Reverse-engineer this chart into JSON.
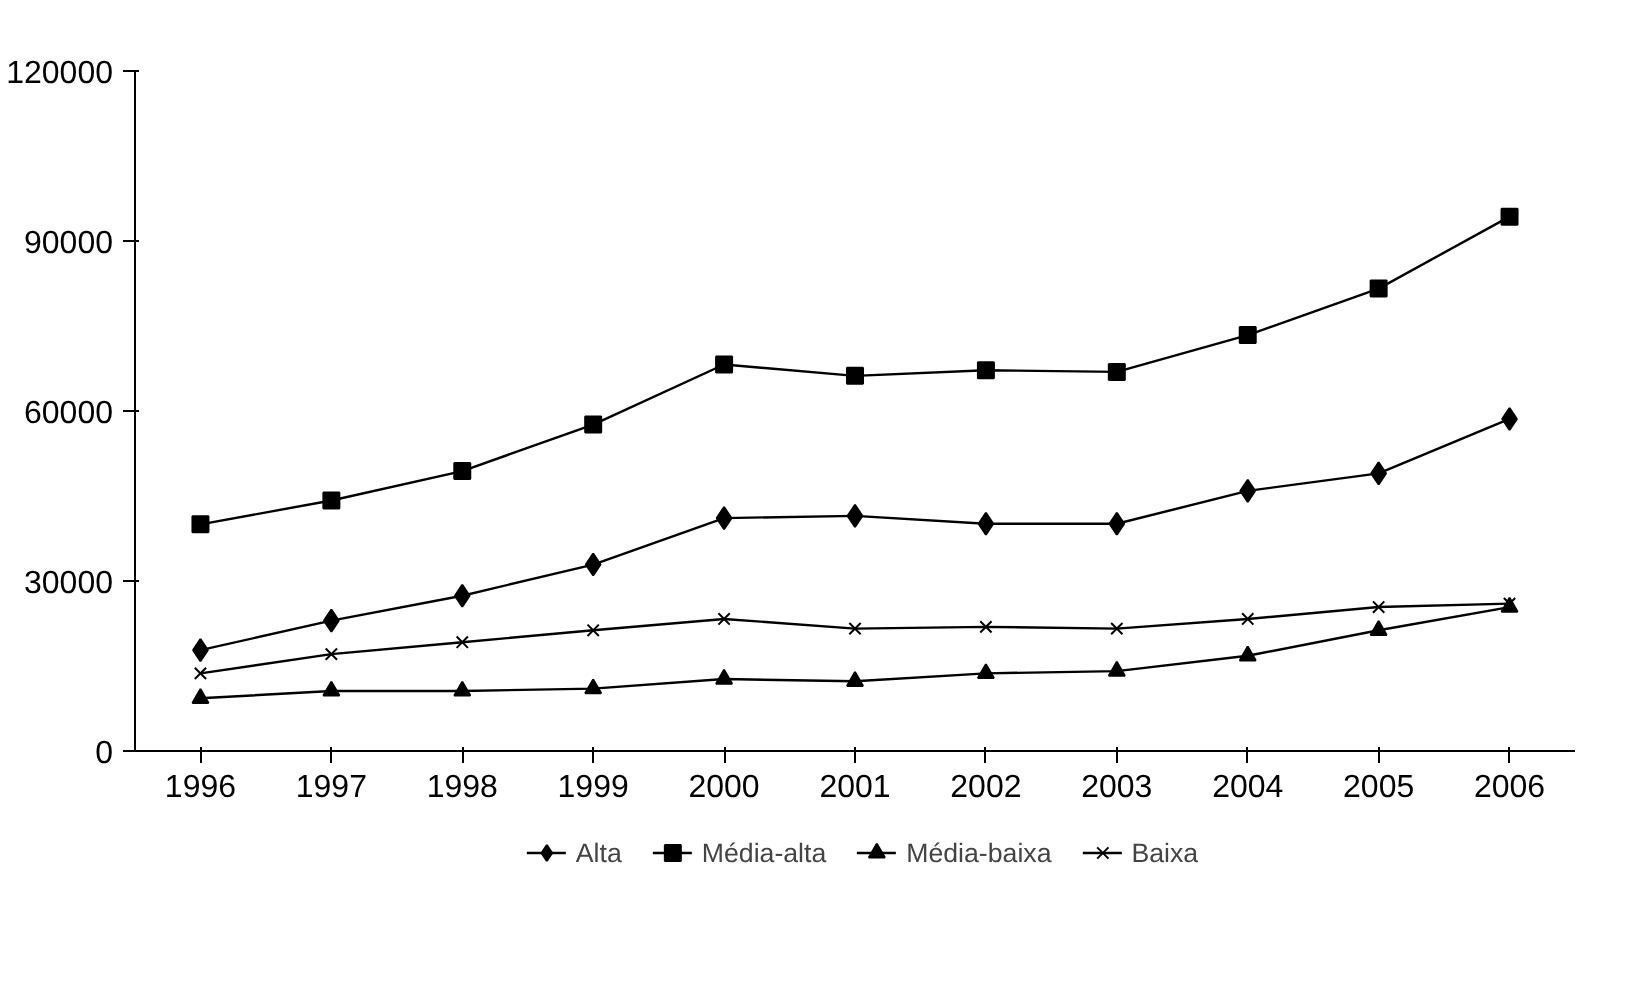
{
  "chart_data": {
    "type": "line",
    "categories": [
      "1996",
      "1997",
      "1998",
      "1999",
      "2000",
      "2001",
      "2002",
      "2003",
      "2004",
      "2005",
      "2006"
    ],
    "ylim": [
      0,
      120000
    ],
    "yticks": [
      0,
      30000,
      60000,
      90000,
      120000
    ],
    "grid": false,
    "legend": "bottom",
    "series": [
      {
        "name": "Alta",
        "color": "#000000",
        "marker": "diamond",
        "values": [
          17800,
          23000,
          27400,
          32900,
          41100,
          41500,
          40100,
          40100,
          45900,
          49000,
          58600
        ]
      },
      {
        "name": "Média-alta",
        "color": "#000000",
        "marker": "square",
        "values": [
          40000,
          44200,
          49400,
          57600,
          68200,
          66200,
          67200,
          66900,
          73400,
          81600,
          94300
        ]
      },
      {
        "name": "Média-baixa",
        "color": "#000000",
        "marker": "triangle",
        "values": [
          9300,
          10600,
          10600,
          11000,
          12700,
          12300,
          13700,
          14100,
          16800,
          21300,
          25400
        ]
      },
      {
        "name": "Baixa",
        "color": "#000000",
        "marker": "cross",
        "values": [
          13700,
          17100,
          19200,
          21300,
          23300,
          21600,
          21900,
          21600,
          23300,
          25400,
          26000
        ]
      }
    ]
  }
}
